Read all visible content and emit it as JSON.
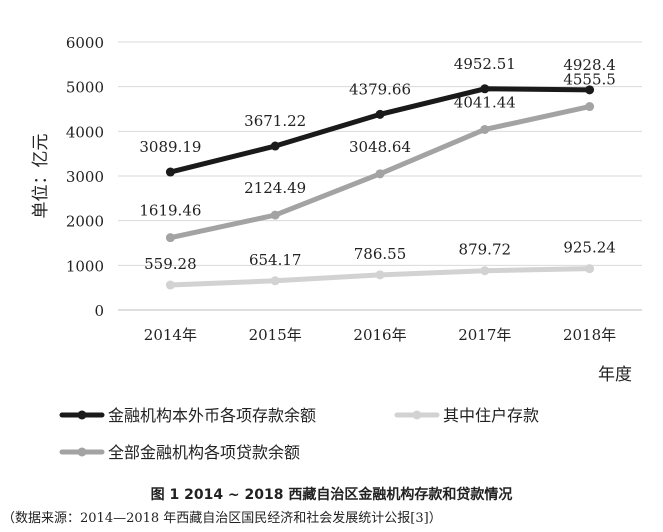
{
  "chart_data": {
    "type": "line",
    "ylabel": "单位：亿元",
    "xlabel": "年度",
    "categories": [
      "2014年",
      "2015年",
      "2016年",
      "2017年",
      "2018年"
    ],
    "ylim": [
      0,
      6000
    ],
    "yticks": [
      0,
      1000,
      2000,
      3000,
      4000,
      5000,
      6000
    ],
    "grid": true,
    "legend_position": "bottom",
    "series": [
      {
        "name": "金融机构本外币各项存款余额",
        "color": "#1a1a1a",
        "values": [
          3089.19,
          3671.22,
          4379.66,
          4952.51,
          4928.4
        ],
        "labels": [
          "3089.19",
          "3671.22",
          "4379.66",
          "4952.51",
          "4928.4"
        ]
      },
      {
        "name": "其中住户存款",
        "color": "#d2d2d2",
        "values": [
          559.28,
          654.17,
          786.55,
          879.72,
          925.24
        ],
        "labels": [
          "559.28",
          "654.17",
          "786.55",
          "879.72",
          "925.24"
        ]
      },
      {
        "name": "全部金融机构各项贷款余额",
        "color": "#a3a3a3",
        "values": [
          1619.46,
          2124.49,
          3048.64,
          4041.44,
          4555.5
        ],
        "labels": [
          "1619.46",
          "2124.49",
          "3048.64",
          "4041.44",
          "4555.5"
        ]
      }
    ]
  },
  "caption": {
    "title": "图 1  2014 ~ 2018 西藏自治区金融机构存款和贷款情况",
    "source": "（数据来源：2014—2018 年西藏自治区国民经济和社会发展统计公报[3]）"
  }
}
